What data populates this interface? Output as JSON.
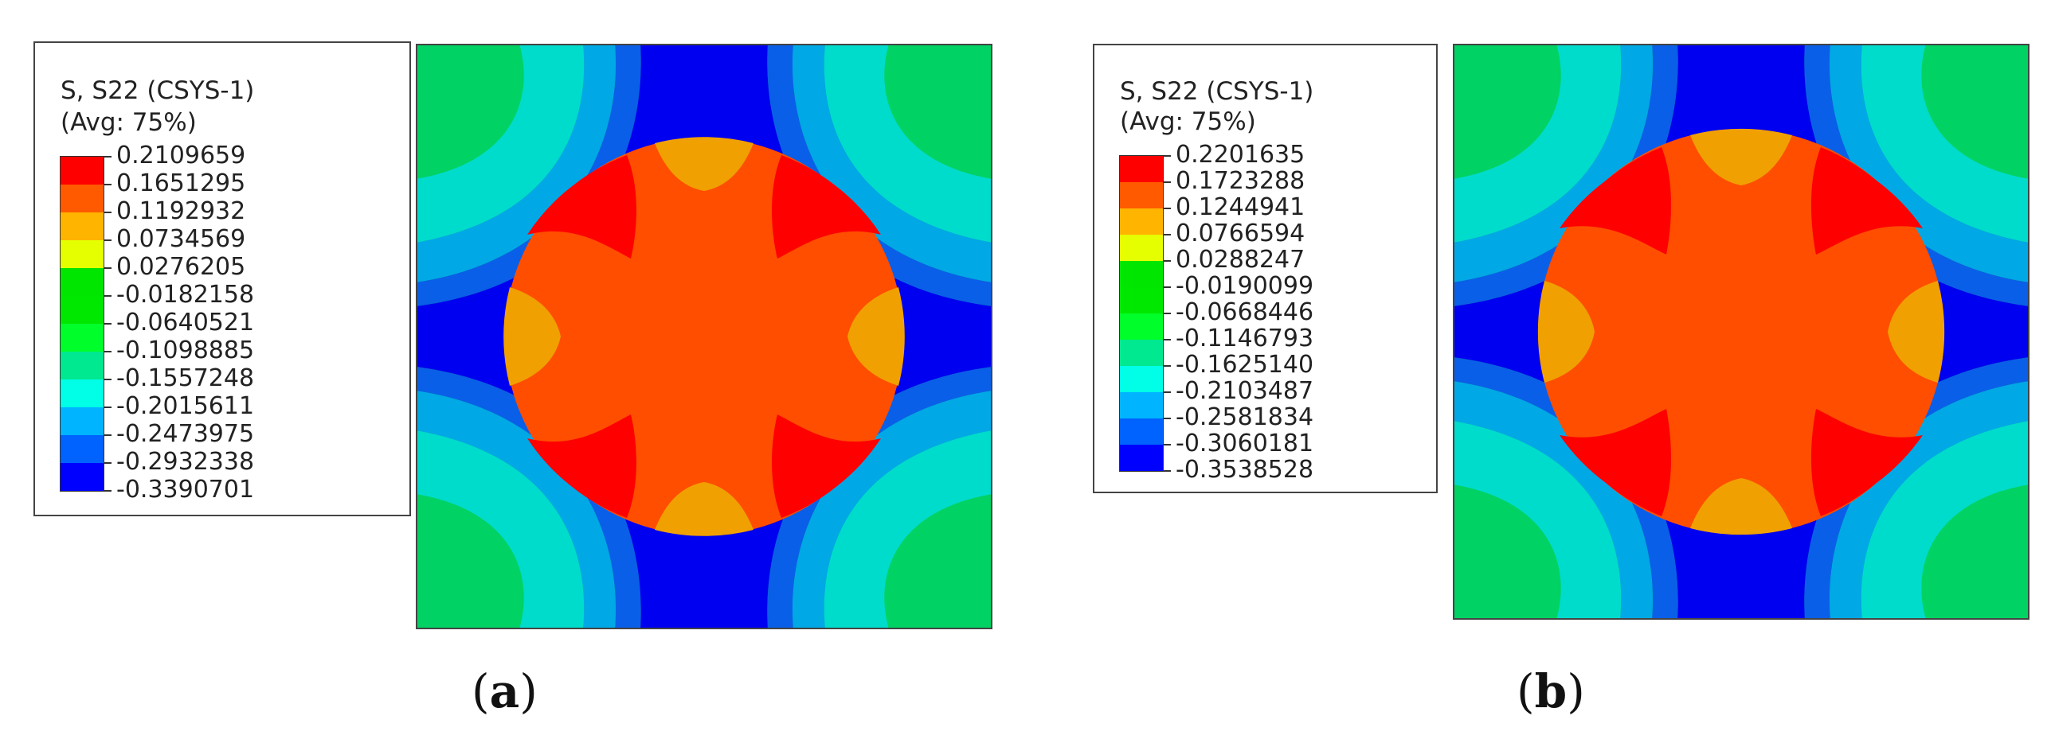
{
  "panels": [
    {
      "id": "a",
      "legend": {
        "title_line1": "S, S22 (CSYS-1)",
        "title_line2": "(Avg: 75%)",
        "values": [
          "0.2109659",
          "0.1651295",
          "0.1192932",
          "0.0734569",
          "0.0276205",
          "-0.0182158",
          "-0.0640521",
          "-0.1098885",
          "-0.1557248",
          "-0.2015611",
          "-0.2473975",
          "-0.2932338",
          "-0.3390701"
        ]
      },
      "caption_letter": "a"
    },
    {
      "id": "b",
      "legend": {
        "title_line1": "S, S22 (CSYS-1)",
        "title_line2": "(Avg: 75%)",
        "values": [
          "0.2201635",
          "0.1723288",
          "0.1244941",
          "0.0766594",
          "0.0288247",
          "-0.0190099",
          "-0.0668446",
          "-0.1146793",
          "-0.1625140",
          "-0.2103487",
          "-0.2581834",
          "-0.3060181",
          "-0.3538528"
        ]
      },
      "caption_letter": "b"
    }
  ],
  "colormap": [
    "#ff0000",
    "#ff5a00",
    "#ffb400",
    "#e6ff00",
    "#00e600",
    "#00e800",
    "#00ff2a",
    "#00e890",
    "#00ffe6",
    "#00b4ff",
    "#0062ff",
    "#0000ff"
  ],
  "contour_colors": {
    "corner_green": "#00d264",
    "teal": "#00dccc",
    "light_blue": "#00a8e6",
    "mid_blue": "#0a5fe8",
    "deep_blue": "#0000f0",
    "red": "#ff0000",
    "orange_red": "#ff4e00",
    "amber": "#f0a000"
  }
}
